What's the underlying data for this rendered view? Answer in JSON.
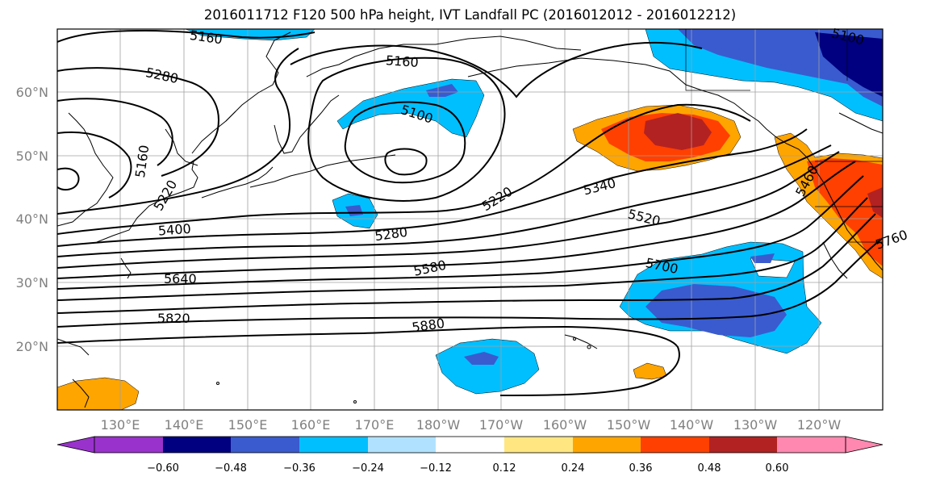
{
  "title": "2016011712 F120 500 hPa height, IVT Landfall PC (2016012012 - 2016012212)",
  "lat_labels": [
    "60°N",
    "50°N",
    "40°N",
    "30°N",
    "20°N"
  ],
  "lon_labels": [
    "130°E",
    "140°E",
    "150°E",
    "160°E",
    "170°E",
    "180°W",
    "170°W",
    "160°W",
    "150°W",
    "140°W",
    "130°W",
    "120°W"
  ],
  "contour_labels": [
    "5160",
    "5160",
    "5100",
    "5280",
    "5100",
    "5160",
    "5220",
    "5400",
    "5220",
    "5280",
    "5340",
    "5460",
    "5520",
    "5580",
    "5700",
    "5640",
    "5820",
    "5880",
    "5760"
  ],
  "colorbar": {
    "ticks": [
      "−0.60",
      "−0.48",
      "−0.36",
      "−0.24",
      "−0.12",
      "0.12",
      "0.24",
      "0.36",
      "0.48",
      "0.60"
    ],
    "colors": [
      "#9932cc",
      "#000080",
      "#3a5bcf",
      "#00bfff",
      "#b0e2ff",
      "#ffffff",
      "#ffe680",
      "#ffa500",
      "#ff4000",
      "#b22222",
      "#ff88b0"
    ]
  }
}
